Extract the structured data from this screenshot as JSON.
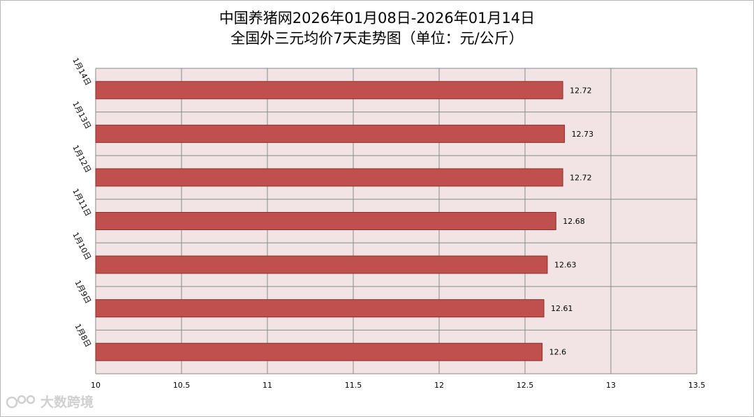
{
  "title_line1": "中国养猪网2026年01月08日-2026年01月14日",
  "title_line2": "全国外三元均价7天走势图（单位：元/公斤）",
  "watermark": "大数跨境",
  "colors": {
    "bar_fill": "#c0504d",
    "bar_stroke": "#8c2f2c",
    "plot_bg": "#f2e4e4",
    "grid": "#8a8a8a"
  },
  "chart_data": {
    "type": "bar",
    "orientation": "horizontal",
    "categories": [
      "1月14日",
      "1月13日",
      "1月12日",
      "1月11日",
      "1月10日",
      "1月9日",
      "1月8日"
    ],
    "values": [
      12.72,
      12.73,
      12.72,
      12.68,
      12.63,
      12.61,
      12.6
    ],
    "value_labels": [
      "12.72",
      "12.73",
      "12.72",
      "12.68",
      "12.63",
      "12.61",
      "12.6"
    ],
    "xlim": [
      10,
      13.5
    ],
    "xticks": [
      "10",
      "10.5",
      "11",
      "11.5",
      "12",
      "12.5",
      "13",
      "13.5"
    ],
    "xlabel": "",
    "ylabel": "",
    "grid": true,
    "legend": false
  }
}
